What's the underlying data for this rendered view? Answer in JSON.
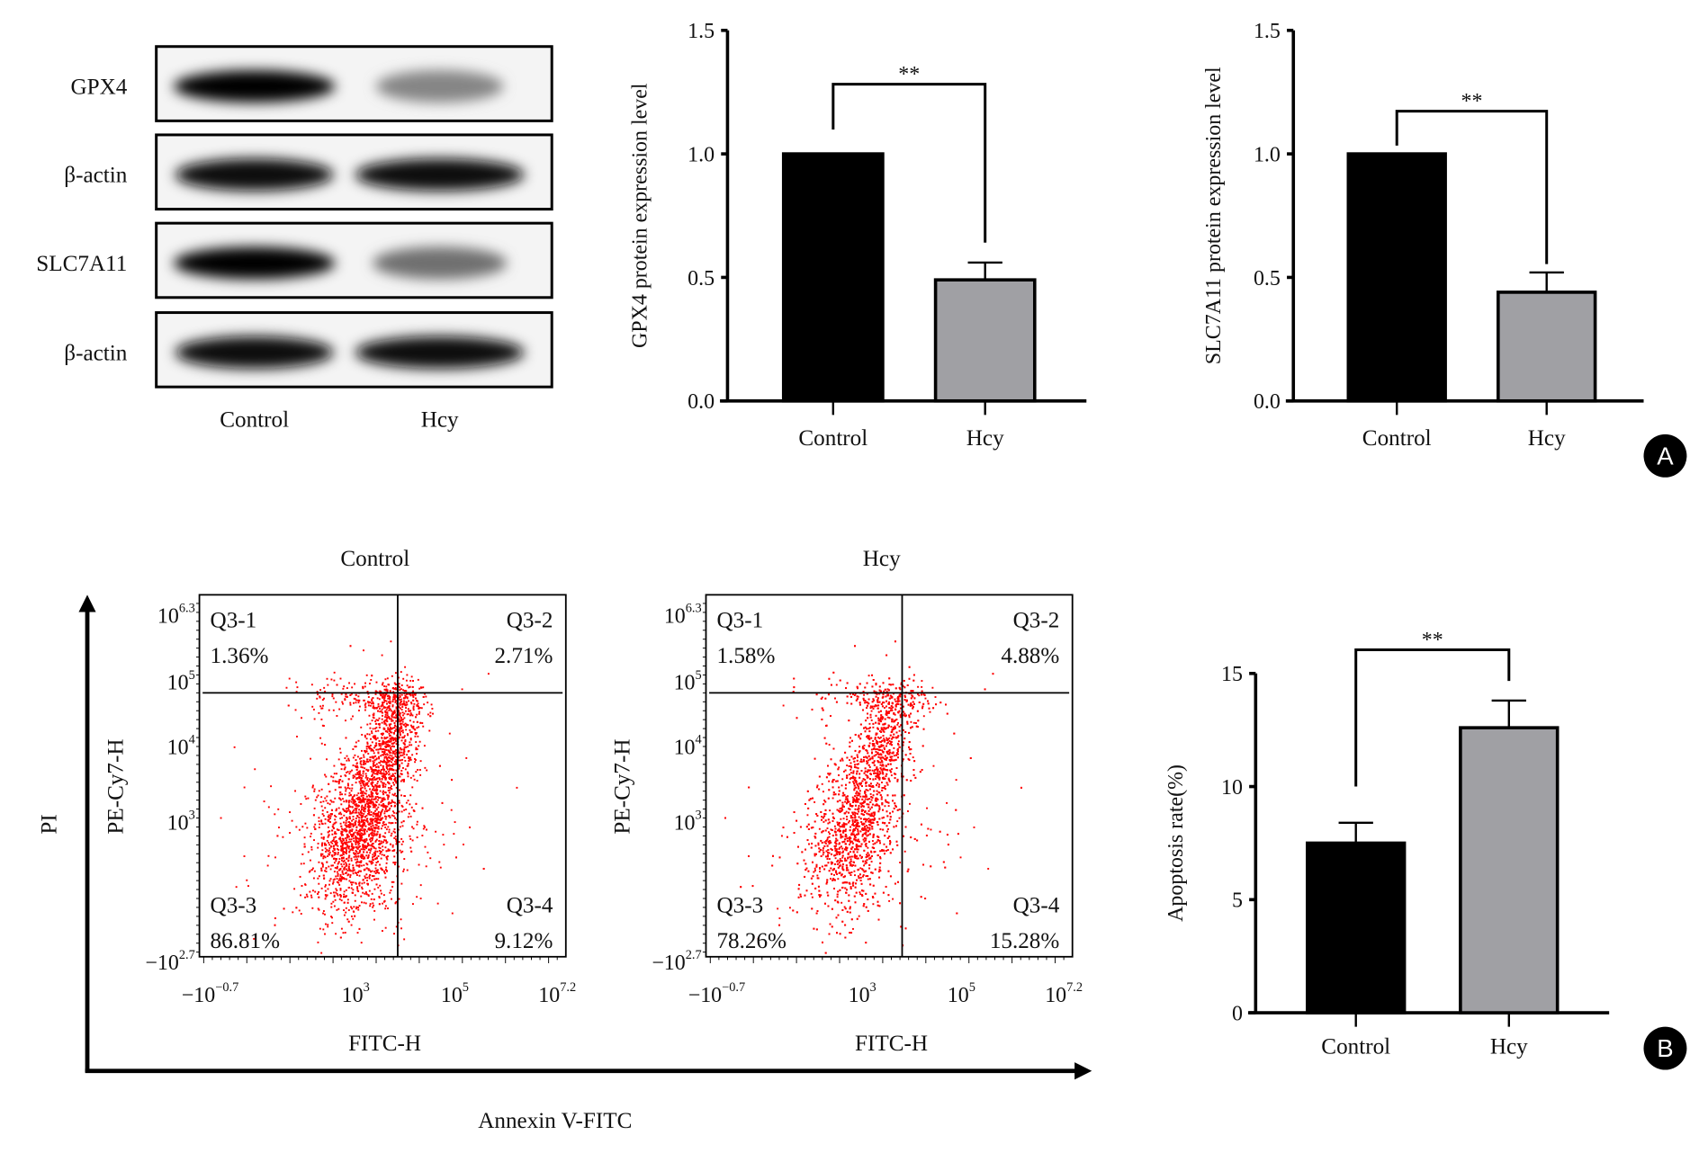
{
  "panel_labels": {
    "a": "A",
    "b": "B"
  },
  "western_blot": {
    "rows": [
      "GPX4",
      "β-actin",
      "SLC7A11",
      "β-actin"
    ],
    "lanes": [
      "Control",
      "Hcy"
    ],
    "band_intensity": [
      [
        1.0,
        0.35
      ],
      [
        0.95,
        0.95
      ],
      [
        1.0,
        0.45
      ],
      [
        0.95,
        0.95
      ]
    ]
  },
  "flow": {
    "x_axis_title": "Annexin V-FITC",
    "y_axis_title": "PI",
    "plots": [
      {
        "title": "Control",
        "xlabel": "FITC-H",
        "ylabel": "PE-Cy7-H",
        "quadrants": [
          {
            "name": "Q3-1",
            "value": "1.36%"
          },
          {
            "name": "Q3-2",
            "value": "2.71%"
          },
          {
            "name": "Q3-3",
            "value": "86.81%"
          },
          {
            "name": "Q3-4",
            "value": "9.12%"
          }
        ]
      },
      {
        "title": "Hcy",
        "xlabel": "FITC-H",
        "ylabel": "PE-Cy7-H",
        "quadrants": [
          {
            "name": "Q3-1",
            "value": "1.58%"
          },
          {
            "name": "Q3-2",
            "value": "4.88%"
          },
          {
            "name": "Q3-3",
            "value": "78.26%"
          },
          {
            "name": "Q3-4",
            "value": "15.28%"
          }
        ]
      }
    ],
    "y_ticks": [
      {
        "base": "10",
        "exp": "6.3"
      },
      {
        "base": "10",
        "exp": "5"
      },
      {
        "base": "10",
        "exp": "4"
      },
      {
        "base": "10",
        "exp": "3"
      },
      {
        "base": "−10",
        "exp": "2.7"
      }
    ],
    "x_ticks": [
      {
        "base": "−10",
        "exp": "−0.7"
      },
      {
        "base": "10",
        "exp": "3"
      },
      {
        "base": "10",
        "exp": "5"
      },
      {
        "base": "10",
        "exp": "7.2"
      }
    ],
    "dot_color": "#ff0000"
  },
  "chart_data": [
    {
      "type": "bar",
      "title": "",
      "xlabel": "",
      "ylabel": "GPX4 protein expression level",
      "categories": [
        "Control",
        "Hcy"
      ],
      "values": [
        1.0,
        0.49
      ],
      "errors": [
        0,
        0.07
      ],
      "ylim": [
        0,
        1.5
      ],
      "yticks": [
        "0.0",
        "0.5",
        "1.0",
        "1.5"
      ],
      "yticks_values": [
        0,
        0.5,
        1.0,
        1.5
      ],
      "colors": [
        "#000000",
        "#a0a0a4"
      ],
      "significance": "**"
    },
    {
      "type": "bar",
      "title": "",
      "xlabel": "",
      "ylabel": "SLC7A11 protein expression level",
      "categories": [
        "Control",
        "Hcy"
      ],
      "values": [
        1.0,
        0.44
      ],
      "errors": [
        0,
        0.08
      ],
      "ylim": [
        0,
        1.5
      ],
      "yticks": [
        "0.0",
        "0.5",
        "1.0",
        "1.5"
      ],
      "yticks_values": [
        0,
        0.5,
        1.0,
        1.5
      ],
      "colors": [
        "#000000",
        "#a0a0a4"
      ],
      "significance": "**"
    },
    {
      "type": "bar",
      "title": "",
      "xlabel": "",
      "ylabel": "Apoptosis rate(%)",
      "categories": [
        "Control",
        "Hcy"
      ],
      "values": [
        7.5,
        12.6
      ],
      "errors": [
        0.9,
        1.2
      ],
      "ylim": [
        0,
        15
      ],
      "yticks": [
        "0",
        "5",
        "10",
        "15"
      ],
      "yticks_values": [
        0,
        5,
        10,
        15
      ],
      "colors": [
        "#000000",
        "#a0a0a4"
      ],
      "significance": "**"
    }
  ]
}
